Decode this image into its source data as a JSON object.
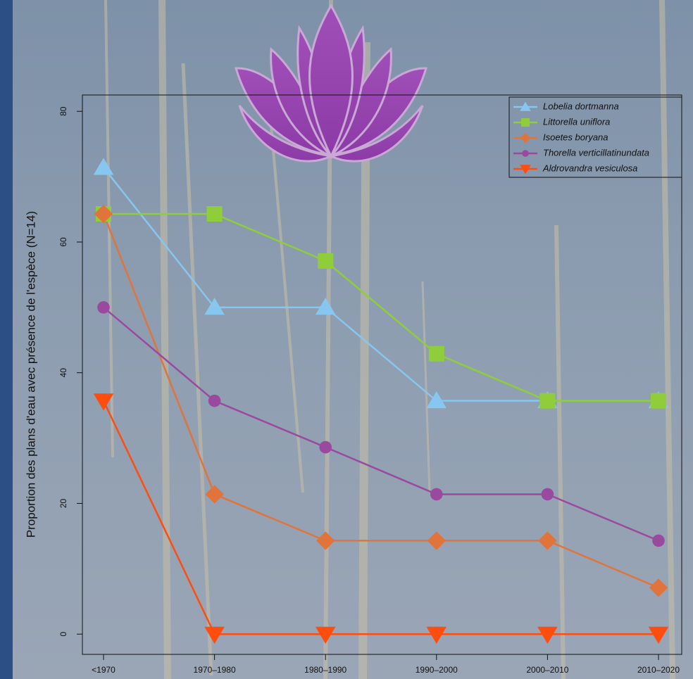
{
  "chart_data": {
    "type": "line",
    "y_label": "Proportion des plans d'eau avec présence de l'espèce (N=14)",
    "categories": [
      "<1970",
      "1970–1980",
      "1980–1990",
      "1990–2000",
      "2000–2010",
      "2010–2020"
    ],
    "series": [
      {
        "name": "Lobelia dortmanna",
        "color": "#87c6ee",
        "marker": "triangle-up",
        "values": [
          71.4,
          50,
          50,
          35.7,
          35.7,
          35.7
        ]
      },
      {
        "name": "Littorella uniflora",
        "color": "#8fce3a",
        "marker": "square",
        "values": [
          64.3,
          64.3,
          57.1,
          42.9,
          35.7,
          35.7
        ]
      },
      {
        "name": "Isoetes boryana",
        "color": "#e0743a",
        "marker": "diamond",
        "values": [
          64.3,
          21.4,
          14.3,
          14.3,
          14.3,
          7.1
        ]
      },
      {
        "name": "Thorella verticillatinundata",
        "color": "#9a4a9e",
        "marker": "circle",
        "values": [
          50,
          35.7,
          28.6,
          21.4,
          21.4,
          14.3
        ]
      },
      {
        "name": "Aldrovandra vesiculosa",
        "color": "#ff4d0d",
        "marker": "triangle-down",
        "values": [
          35.7,
          0,
          0,
          0,
          0,
          0
        ]
      }
    ],
    "ylim": [
      -3.1,
      82.5
    ],
    "yticks": [
      0,
      20,
      40,
      60,
      80
    ],
    "legend": "top-right"
  }
}
